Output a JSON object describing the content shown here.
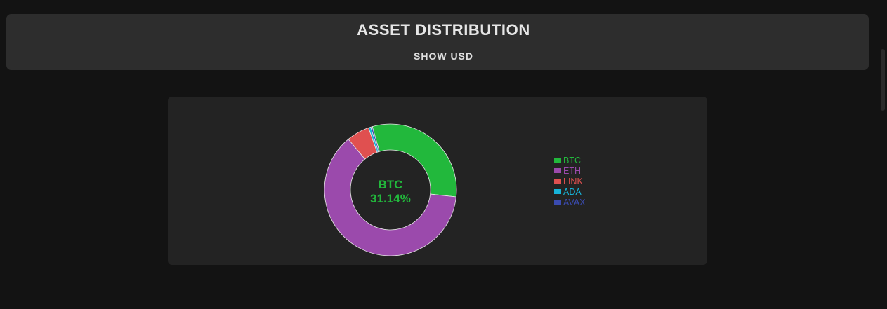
{
  "header": {
    "title": "ASSET DISTRIBUTION",
    "toggle_label": "SHOW USD"
  },
  "chart_data": {
    "type": "pie",
    "categories": [
      "BTC",
      "ETH",
      "LINK",
      "ADA",
      "AVAX"
    ],
    "values": [
      31.14,
      62.3,
      5.6,
      0.56,
      0.4
    ],
    "colors": [
      "#22b83c",
      "#9b4aac",
      "#e05050",
      "#17b3d8",
      "#3a4bb0"
    ],
    "center_label": {
      "name": "BTC",
      "percent": "31.14%"
    },
    "legend_position": "right",
    "slice_border_color": "#e8e8e8"
  }
}
